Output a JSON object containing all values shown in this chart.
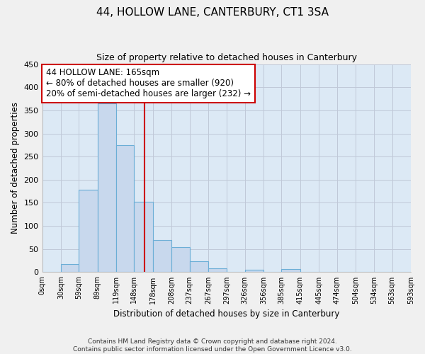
{
  "title": "44, HOLLOW LANE, CANTERBURY, CT1 3SA",
  "subtitle": "Size of property relative to detached houses in Canterbury",
  "xlabel": "Distribution of detached houses by size in Canterbury",
  "ylabel": "Number of detached properties",
  "bar_color": "#c8d8ed",
  "bar_edge_color": "#6baed6",
  "background_color": "#dce9f5",
  "grid_color": "#c0c8d8",
  "annotation_text": "44 HOLLOW LANE: 165sqm\n← 80% of detached houses are smaller (920)\n20% of semi-detached houses are larger (232) →",
  "vline_x": 165,
  "vline_color": "#cc0000",
  "bin_edges": [
    0,
    30,
    59,
    89,
    119,
    148,
    178,
    208,
    237,
    267,
    297,
    326,
    356,
    385,
    415,
    445,
    474,
    504,
    534,
    563,
    593
  ],
  "bin_labels": [
    "0sqm",
    "30sqm",
    "59sqm",
    "89sqm",
    "119sqm",
    "148sqm",
    "178sqm",
    "208sqm",
    "237sqm",
    "267sqm",
    "297sqm",
    "326sqm",
    "356sqm",
    "385sqm",
    "415sqm",
    "445sqm",
    "474sqm",
    "504sqm",
    "534sqm",
    "563sqm",
    "593sqm"
  ],
  "bar_heights": [
    0,
    18,
    178,
    365,
    275,
    152,
    70,
    55,
    23,
    9,
    0,
    5,
    0,
    7,
    0,
    0,
    1,
    0,
    0,
    1
  ],
  "ylim": [
    0,
    450
  ],
  "yticks": [
    0,
    50,
    100,
    150,
    200,
    250,
    300,
    350,
    400,
    450
  ],
  "fig_bg": "#f0f0f0",
  "footer_line1": "Contains HM Land Registry data © Crown copyright and database right 2024.",
  "footer_line2": "Contains public sector information licensed under the Open Government Licence v3.0."
}
